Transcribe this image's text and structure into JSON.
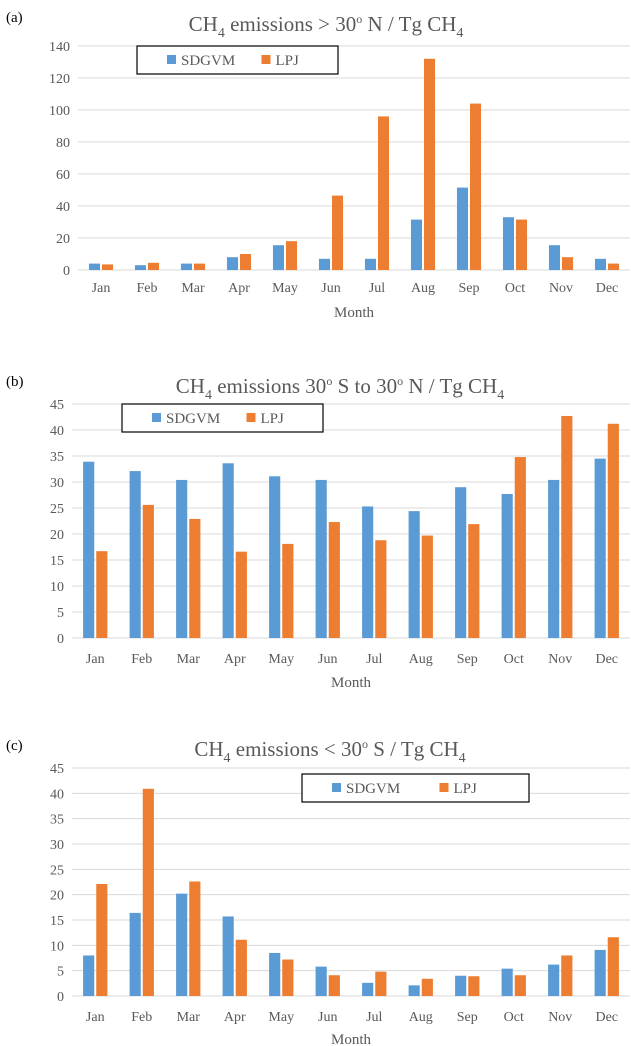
{
  "figure": {
    "colors": {
      "SDGVM": "#5B9BD5",
      "LPJ": "#ED7D31",
      "grid": "#D9D9D9",
      "text": "#595959"
    }
  },
  "chart_data": [
    {
      "panel_label": "(a)",
      "type": "bar",
      "title": {
        "pre": "CH",
        "sub": "4",
        "mid": " emissions > 30",
        "sup": "o",
        "post": " N / Tg CH",
        "sub2": "4"
      },
      "xlabel": "Month",
      "ylabel": "",
      "ylim": [
        0,
        140
      ],
      "yticks": [
        0,
        20,
        40,
        60,
        80,
        100,
        120,
        140
      ],
      "grid": true,
      "legend_position": "top-left",
      "categories": [
        "Jan",
        "Feb",
        "Mar",
        "Apr",
        "May",
        "Jun",
        "Jul",
        "Aug",
        "Sep",
        "Oct",
        "Nov",
        "Dec"
      ],
      "series": [
        {
          "name": "SDGVM",
          "color": "#5B9BD5",
          "values": [
            4,
            3,
            4,
            8,
            15.5,
            7,
            7,
            31.5,
            51.5,
            33,
            15.5,
            7
          ]
        },
        {
          "name": "LPJ",
          "color": "#ED7D31",
          "values": [
            3.5,
            4.5,
            4,
            10,
            18,
            46.5,
            96,
            132,
            104,
            31.5,
            8,
            4
          ]
        }
      ]
    },
    {
      "panel_label": "(b)",
      "type": "bar",
      "title": {
        "pre": "CH",
        "sub": "4",
        "mid": " emissions 30",
        "sup": "o",
        "post": " S to 30",
        "sup2": "o",
        "post2": " N / Tg CH",
        "sub2": "4"
      },
      "xlabel": "Month",
      "ylabel": "",
      "ylim": [
        0,
        45
      ],
      "yticks": [
        0,
        5,
        10,
        15,
        20,
        25,
        30,
        35,
        40,
        45
      ],
      "grid": true,
      "legend_position": "top-left",
      "categories": [
        "Jan",
        "Feb",
        "Mar",
        "Apr",
        "May",
        "Jun",
        "Jul",
        "Aug",
        "Sep",
        "Oct",
        "Nov",
        "Dec"
      ],
      "series": [
        {
          "name": "SDGVM",
          "color": "#5B9BD5",
          "values": [
            33.9,
            32.1,
            30.4,
            33.6,
            31.1,
            30.4,
            25.3,
            24.4,
            29.0,
            27.7,
            30.4,
            34.5
          ]
        },
        {
          "name": "LPJ",
          "color": "#ED7D31",
          "values": [
            16.7,
            25.6,
            22.9,
            16.6,
            18.1,
            22.3,
            18.8,
            19.7,
            21.9,
            34.8,
            42.7,
            41.2
          ]
        }
      ]
    },
    {
      "panel_label": "(c)",
      "type": "bar",
      "title": {
        "pre": "CH",
        "sub": "4",
        "mid": " emissions < 30",
        "sup": "o",
        "post": " S / Tg CH",
        "sub2": "4"
      },
      "xlabel": "Month",
      "ylabel": "",
      "ylim": [
        0,
        45
      ],
      "yticks": [
        0,
        5,
        10,
        15,
        20,
        25,
        30,
        35,
        40,
        45
      ],
      "grid": true,
      "legend_position": "top-right",
      "categories": [
        "Jan",
        "Feb",
        "Mar",
        "Apr",
        "May",
        "Jun",
        "Jul",
        "Aug",
        "Sep",
        "Oct",
        "Nov",
        "Dec"
      ],
      "series": [
        {
          "name": "SDGVM",
          "color": "#5B9BD5",
          "values": [
            8.0,
            16.4,
            20.2,
            15.7,
            8.5,
            5.8,
            2.6,
            2.1,
            4.0,
            5.4,
            6.2,
            9.1
          ]
        },
        {
          "name": "LPJ",
          "color": "#ED7D31",
          "values": [
            22.1,
            40.9,
            22.6,
            11.1,
            7.2,
            4.1,
            4.8,
            3.4,
            3.9,
            4.1,
            8.0,
            11.6
          ]
        }
      ]
    }
  ]
}
